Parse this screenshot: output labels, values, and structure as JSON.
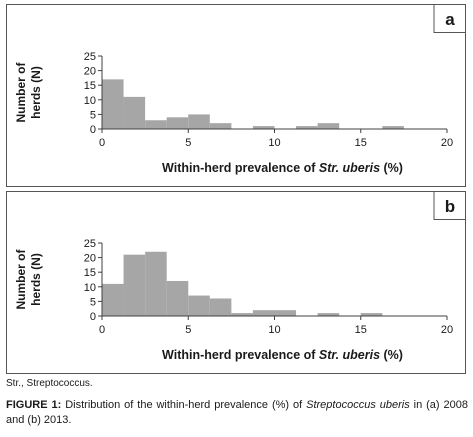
{
  "chart_data": [
    {
      "type": "bar",
      "panel_label": "a",
      "xlabel_prefix": "Within-herd prevalence of ",
      "xlabel_italic": "Str. uberis",
      "xlabel_suffix": " (%)",
      "ylabel_lines": [
        "Number of",
        "herds (N)"
      ],
      "xlim": [
        0,
        20
      ],
      "ylim": [
        0,
        25
      ],
      "xticks": [
        0,
        5,
        10,
        15,
        20
      ],
      "yticks": [
        0,
        5,
        10,
        15,
        20,
        25
      ],
      "bin_width": 1.25,
      "bins": [
        {
          "x0": 0,
          "value": 17
        },
        {
          "x0": 1.25,
          "value": 11
        },
        {
          "x0": 2.5,
          "value": 3
        },
        {
          "x0": 3.75,
          "value": 4
        },
        {
          "x0": 5,
          "value": 5
        },
        {
          "x0": 6.25,
          "value": 2
        },
        {
          "x0": 8.75,
          "value": 1
        },
        {
          "x0": 11.25,
          "value": 1
        },
        {
          "x0": 12.5,
          "value": 2
        },
        {
          "x0": 16.25,
          "value": 1
        }
      ],
      "bar_color": "#a6a6a6",
      "grid": false
    },
    {
      "type": "bar",
      "panel_label": "b",
      "xlabel_prefix": "Within-herd prevalence of ",
      "xlabel_italic": "Str. uberis",
      "xlabel_suffix": " (%)",
      "ylabel_lines": [
        "Number of",
        "herds (N)"
      ],
      "xlim": [
        0,
        20
      ],
      "ylim": [
        0,
        25
      ],
      "xticks": [
        0,
        5,
        10,
        15,
        20
      ],
      "yticks": [
        0,
        5,
        10,
        15,
        20,
        25
      ],
      "bin_width": 1.25,
      "bins": [
        {
          "x0": 0,
          "value": 11
        },
        {
          "x0": 1.25,
          "value": 21
        },
        {
          "x0": 2.5,
          "value": 22
        },
        {
          "x0": 3.75,
          "value": 12
        },
        {
          "x0": 5,
          "value": 7
        },
        {
          "x0": 6.25,
          "value": 6
        },
        {
          "x0": 7.5,
          "value": 1
        },
        {
          "x0": 8.75,
          "value": 2
        },
        {
          "x0": 10,
          "value": 2
        },
        {
          "x0": 12.5,
          "value": 1
        },
        {
          "x0": 15,
          "value": 1
        }
      ],
      "bar_color": "#a6a6a6",
      "grid": false
    }
  ],
  "note": "Str., Streptococcus.",
  "caption": {
    "label": "FIGURE 1:",
    "text_before": " Distribution of the within-herd prevalence (%) of ",
    "italic": "Streptococcus uberis",
    "text_after": " in (a) 2008 and (b) 2013."
  }
}
